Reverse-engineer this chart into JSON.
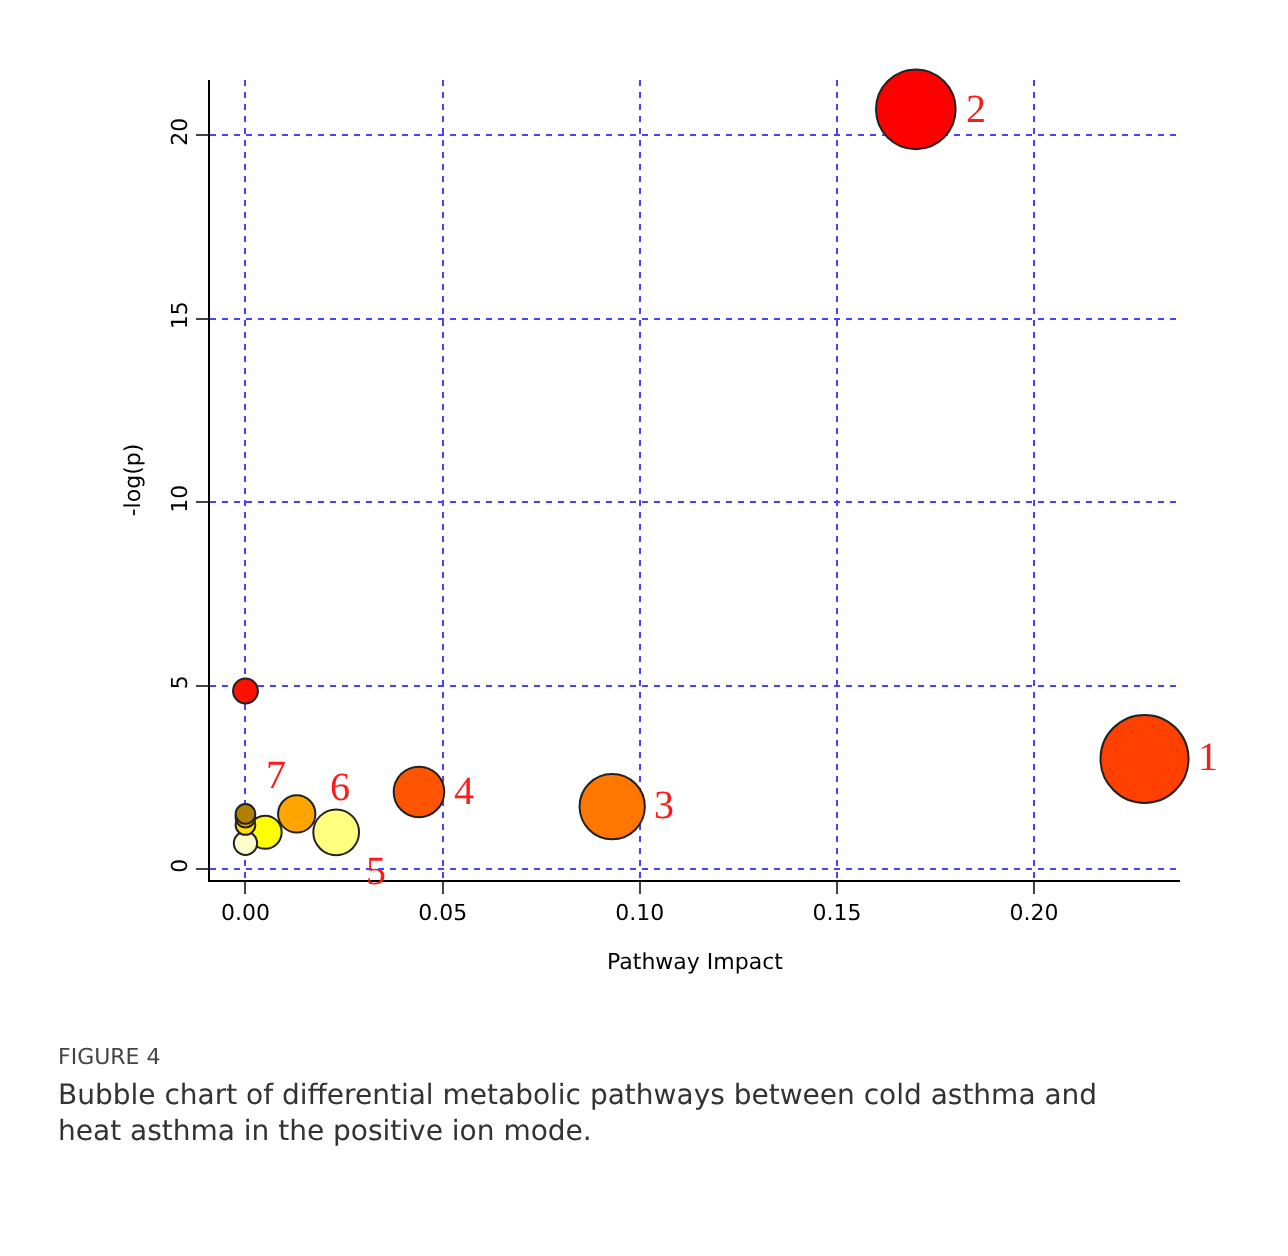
{
  "chart_data": {
    "type": "bubble",
    "xlabel": "Pathway Impact",
    "ylabel": "-log(p)",
    "x": [
      0.228,
      0.17,
      0.093,
      0.044,
      0.023,
      0.013,
      0.005,
      0.0,
      0.0,
      0.0,
      0.0,
      0.0
    ],
    "values": [
      3.0,
      20.7,
      1.7,
      2.1,
      1.0,
      1.5,
      1.0,
      0.7,
      4.85,
      1.2,
      1.4,
      1.5
    ],
    "sizes": [
      1,
      0.82,
      0.55,
      0.33,
      0.27,
      0.18,
      0.14,
      0.07,
      0.08,
      0.05,
      0.05,
      0.05
    ],
    "colors": [
      "#ff4000",
      "#ff0000",
      "#ff7700",
      "#ff5500",
      "#ffff80",
      "#ffa500",
      "#ffff00",
      "#ffffcc",
      "#ff1000",
      "#ffe000",
      "#d8a000",
      "#b08000"
    ],
    "xlim": [
      -0.009,
      0.237
    ],
    "ylim": [
      -0.3,
      21.5
    ],
    "xticks": [
      {
        "value": 0,
        "label": "0.00"
      },
      {
        "value": 0.05,
        "label": "0.05"
      },
      {
        "value": 0.1,
        "label": "0.10"
      },
      {
        "value": 0.15,
        "label": "0.15"
      },
      {
        "value": 0.2,
        "label": "0.20"
      }
    ],
    "yticks": [
      0,
      5,
      10,
      15,
      20
    ],
    "grid": true,
    "annotations": [
      {
        "text": "1",
        "x": 0.228,
        "y": 3.0
      },
      {
        "text": "2",
        "x": 0.17,
        "y": 20.7
      },
      {
        "text": "3",
        "x": 0.093,
        "y": 1.7
      },
      {
        "text": "4",
        "x": 0.044,
        "y": 2.1
      },
      {
        "text": "5",
        "x": 0.023,
        "y": 1.0
      },
      {
        "text": "6",
        "x": 0.013,
        "y": 1.5
      },
      {
        "text": "7",
        "x": 0.0,
        "y": 1.5
      },
      "FIGURE 4",
      "Bubble chart of differential metabolic pathways between cold asthma and heat asthma in the positive ion mode."
    ]
  }
}
